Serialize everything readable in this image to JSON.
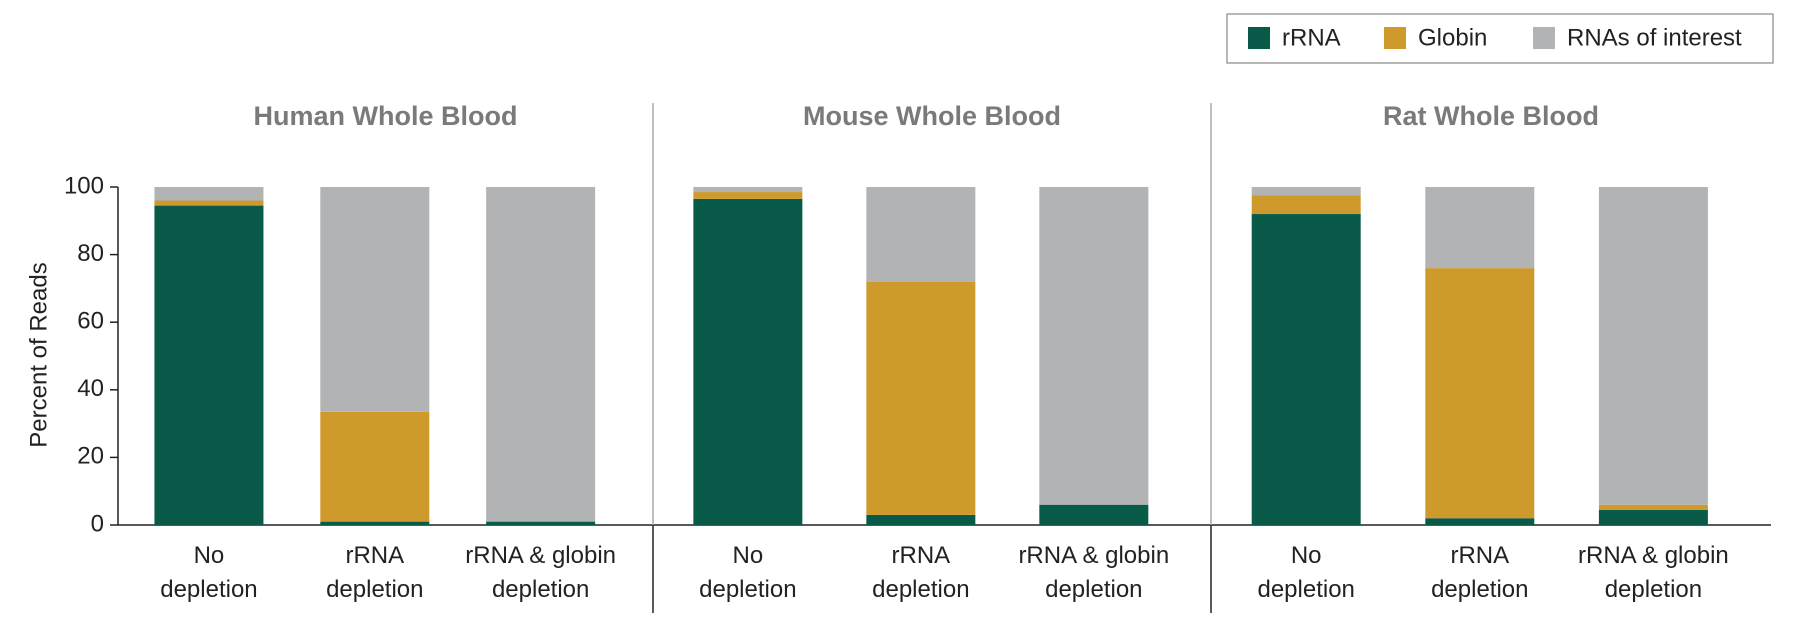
{
  "chart_data": {
    "type": "bar",
    "stacked": true,
    "facets": [
      "Human Whole Blood",
      "Mouse Whole Blood",
      "Rat Whole Blood"
    ],
    "y_label": "Percent of Reads",
    "categories": [
      "No depletion",
      "rRNA depletion",
      "rRNA & globin depletion",
      "No depletion",
      "rRNA depletion",
      "rRNA & globin depletion",
      "No depletion",
      "rRNA depletion",
      "rRNA & globin depletion"
    ],
    "series": [
      {
        "name": "rRNA",
        "color": "#0a5a4a",
        "values": [
          94.5,
          1,
          1,
          96.5,
          3,
          6,
          92,
          2,
          4.5
        ]
      },
      {
        "name": "Globin",
        "color": "#cf9a2c",
        "values": [
          1.5,
          32.5,
          0,
          2,
          69,
          0,
          5.5,
          74,
          1.5
        ]
      },
      {
        "name": "RNAs of interest",
        "color": "#b2b3b4",
        "values": [
          4,
          66.5,
          99,
          1.5,
          28,
          94,
          2.5,
          24,
          94
        ]
      }
    ],
    "ylim": [
      0,
      100
    ],
    "yticks": [
      0,
      20,
      40,
      60,
      80,
      100
    ]
  }
}
